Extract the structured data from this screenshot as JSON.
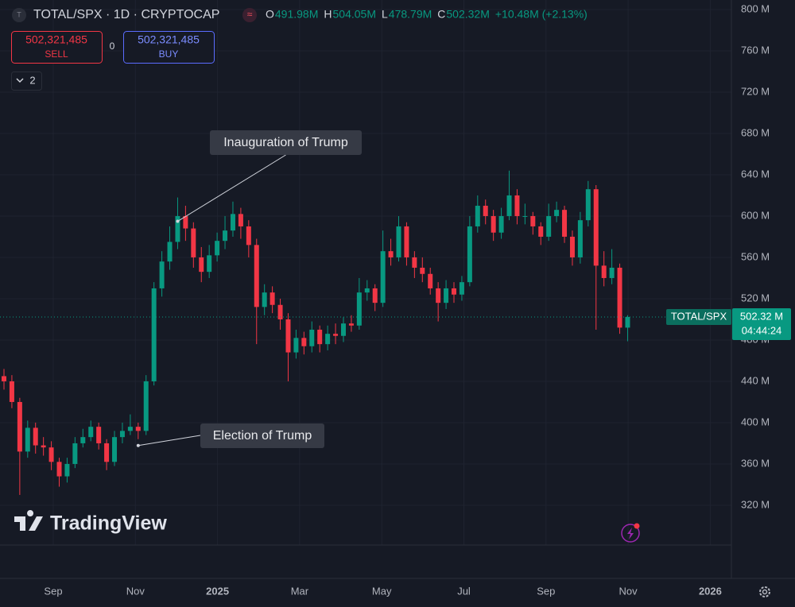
{
  "header": {
    "symbol": "TOTAL/SPX · 1D · CRYPTOCAP",
    "ohlc": [
      {
        "key": "O",
        "text": "491.98M"
      },
      {
        "key": "H",
        "text": "504.05M"
      },
      {
        "key": "L",
        "text": "478.79M"
      },
      {
        "key": "C",
        "text": "502.32M"
      }
    ],
    "change": "+10.48M (+2.13%)"
  },
  "trade": {
    "sell_price": "502,321,485",
    "sell": "SELL",
    "spread": "0",
    "buy_price": "502,321,485",
    "buy": "BUY",
    "indicators": "2"
  },
  "watermark": "TradingView",
  "chart_data": {
    "type": "candlestick",
    "ylim": [
      281.5,
      809.2
    ],
    "yticks": [
      {
        "value": 320,
        "label": "320 M"
      },
      {
        "value": 360,
        "label": "360 M"
      },
      {
        "value": 400,
        "label": "400 M"
      },
      {
        "value": 440,
        "label": "440 M"
      },
      {
        "value": 480,
        "label": "480 M"
      },
      {
        "value": 520,
        "label": "520 M"
      },
      {
        "value": 560,
        "label": "560 M"
      },
      {
        "value": 600,
        "label": "600 M"
      },
      {
        "value": 640,
        "label": "640 M"
      },
      {
        "value": 680,
        "label": "680 M"
      },
      {
        "value": 720,
        "label": "720 M"
      },
      {
        "value": 760,
        "label": "760 M"
      },
      {
        "value": 800,
        "label": "800 M"
      }
    ],
    "xtick_labels": [
      "Sep",
      "Nov",
      "2025",
      "Mar",
      "May",
      "Jul",
      "Sep",
      "Nov",
      "2026"
    ],
    "up_color": "#089981",
    "down_color": "#f23645",
    "grid": true,
    "last_price": 502.32,
    "last_price_label": "502.32 M",
    "price_tag_name": "TOTAL/SPX",
    "countdown": "04:44:24",
    "annotations": [
      {
        "text": "Inauguration of Trump",
        "candle": 22
      },
      {
        "text": "Election of Trump",
        "candle": 17
      }
    ],
    "candles": [
      [
        445,
        452,
        432,
        440
      ],
      [
        440,
        446,
        414,
        420
      ],
      [
        420,
        424,
        330,
        372
      ],
      [
        372,
        402,
        366,
        395
      ],
      [
        395,
        400,
        370,
        378
      ],
      [
        378,
        386,
        368,
        376
      ],
      [
        376,
        382,
        354,
        362
      ],
      [
        362,
        366,
        338,
        348
      ],
      [
        348,
        366,
        342,
        360
      ],
      [
        360,
        386,
        356,
        380
      ],
      [
        380,
        394,
        376,
        386
      ],
      [
        386,
        402,
        382,
        396
      ],
      [
        396,
        400,
        374,
        380
      ],
      [
        380,
        384,
        354,
        362
      ],
      [
        362,
        392,
        358,
        386
      ],
      [
        386,
        400,
        380,
        392
      ],
      [
        392,
        408,
        388,
        396
      ],
      [
        396,
        400,
        384,
        392
      ],
      [
        392,
        446,
        388,
        440
      ],
      [
        440,
        536,
        436,
        530
      ],
      [
        530,
        566,
        522,
        556
      ],
      [
        556,
        590,
        548,
        575
      ],
      [
        575,
        618,
        568,
        600
      ],
      [
        600,
        610,
        576,
        588
      ],
      [
        588,
        594,
        550,
        560
      ],
      [
        560,
        570,
        536,
        546
      ],
      [
        546,
        572,
        540,
        562
      ],
      [
        562,
        584,
        556,
        576
      ],
      [
        576,
        600,
        568,
        586
      ],
      [
        586,
        614,
        580,
        602
      ],
      [
        602,
        608,
        578,
        590
      ],
      [
        590,
        596,
        560,
        572
      ],
      [
        572,
        578,
        476,
        512
      ],
      [
        512,
        534,
        504,
        526
      ],
      [
        526,
        532,
        506,
        514
      ],
      [
        514,
        520,
        490,
        500
      ],
      [
        500,
        506,
        440,
        468
      ],
      [
        468,
        490,
        462,
        482
      ],
      [
        482,
        488,
        466,
        474
      ],
      [
        474,
        498,
        468,
        490
      ],
      [
        490,
        494,
        468,
        476
      ],
      [
        476,
        494,
        470,
        486
      ],
      [
        486,
        496,
        476,
        484
      ],
      [
        484,
        502,
        478,
        496
      ],
      [
        496,
        504,
        488,
        494
      ],
      [
        494,
        540,
        490,
        526
      ],
      [
        526,
        538,
        518,
        530
      ],
      [
        530,
        534,
        508,
        516
      ],
      [
        516,
        586,
        512,
        566
      ],
      [
        566,
        578,
        552,
        560
      ],
      [
        560,
        600,
        556,
        590
      ],
      [
        590,
        594,
        552,
        560
      ],
      [
        560,
        566,
        540,
        550
      ],
      [
        550,
        560,
        536,
        544
      ],
      [
        544,
        550,
        524,
        530
      ],
      [
        530,
        536,
        498,
        516
      ],
      [
        516,
        538,
        510,
        530
      ],
      [
        530,
        536,
        516,
        524
      ],
      [
        524,
        542,
        518,
        536
      ],
      [
        536,
        600,
        532,
        590
      ],
      [
        590,
        620,
        584,
        610
      ],
      [
        610,
        616,
        592,
        600
      ],
      [
        600,
        606,
        576,
        584
      ],
      [
        584,
        608,
        578,
        600
      ],
      [
        600,
        644,
        596,
        620
      ],
      [
        620,
        626,
        592,
        600
      ],
      [
        600,
        612,
        592,
        600
      ],
      [
        600,
        604,
        582,
        590
      ],
      [
        590,
        594,
        572,
        580
      ],
      [
        580,
        612,
        576,
        600
      ],
      [
        600,
        614,
        594,
        606
      ],
      [
        606,
        610,
        574,
        580
      ],
      [
        580,
        586,
        552,
        560
      ],
      [
        560,
        604,
        554,
        596
      ],
      [
        596,
        634,
        590,
        626
      ],
      [
        626,
        630,
        490,
        552
      ],
      [
        552,
        566,
        532,
        540
      ],
      [
        540,
        568,
        534,
        550
      ],
      [
        550,
        554,
        486,
        492
      ],
      [
        491.98,
        504.05,
        478.79,
        502.32
      ]
    ]
  }
}
